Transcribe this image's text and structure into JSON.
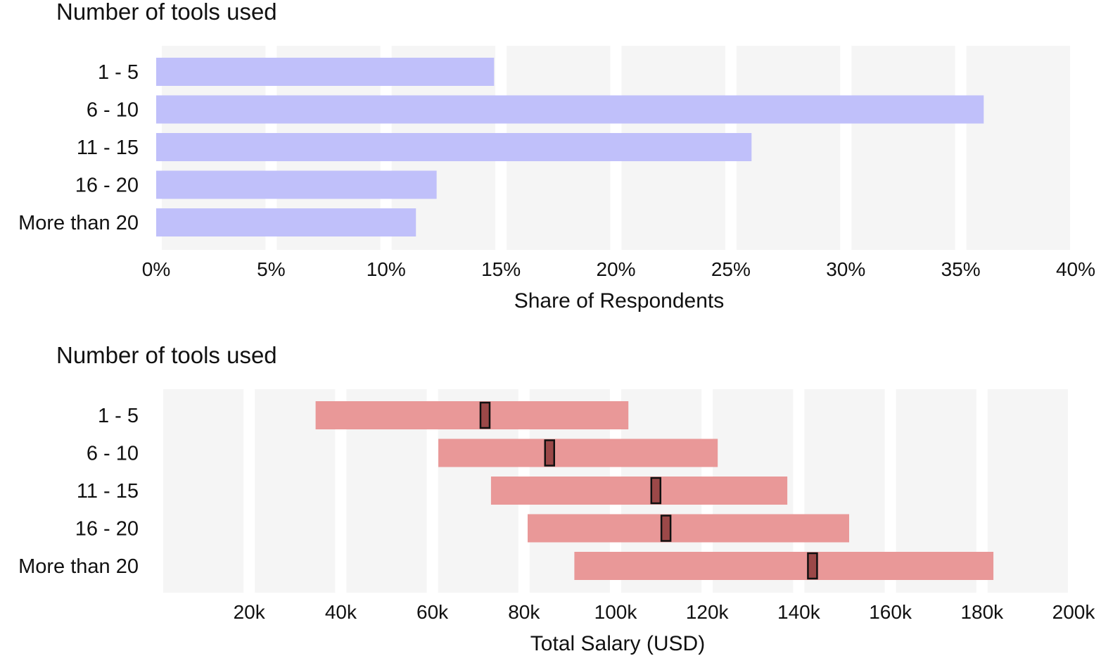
{
  "chart_data": [
    {
      "type": "bar",
      "title": "Number of tools used",
      "xlabel": "Share of Respondents",
      "ylabel": "",
      "categories": [
        "1 - 5",
        "6 - 10",
        "11 - 15",
        "16 - 20",
        "More than 20"
      ],
      "values": [
        14.7,
        36.0,
        25.9,
        12.2,
        11.3
      ],
      "unit": "%",
      "xlim": [
        0,
        40
      ],
      "ticks": [
        "0%",
        "5%",
        "10%",
        "15%",
        "20%",
        "25%",
        "30%",
        "35%",
        "40%"
      ],
      "grid": "vertical bands",
      "bar_color": "#c0c0fa"
    },
    {
      "type": "range",
      "title": "Number of tools used",
      "xlabel": "Total Salary (USD)",
      "ylabel": "",
      "categories": [
        "1 - 5",
        "6 - 10",
        "11 - 15",
        "16 - 20",
        "More than 20"
      ],
      "ranges": [
        {
          "low": 34.5,
          "high": 102.8,
          "median": 71.5
        },
        {
          "low": 61.3,
          "high": 122.3,
          "median": 85.6
        },
        {
          "low": 72.8,
          "high": 137.5,
          "median": 108.8
        },
        {
          "low": 80.8,
          "high": 151.0,
          "median": 111.0
        },
        {
          "low": 91.0,
          "high": 182.5,
          "median": 143.0
        }
      ],
      "unit": "k",
      "xlim": [
        0,
        200
      ],
      "ticks": [
        "20k",
        "40k",
        "60k",
        "80k",
        "100k",
        "120k",
        "140k",
        "160k",
        "180k",
        "200k"
      ],
      "grid": "vertical bands",
      "bar_color": "#e99898",
      "median_color": "#9b4848"
    }
  ]
}
